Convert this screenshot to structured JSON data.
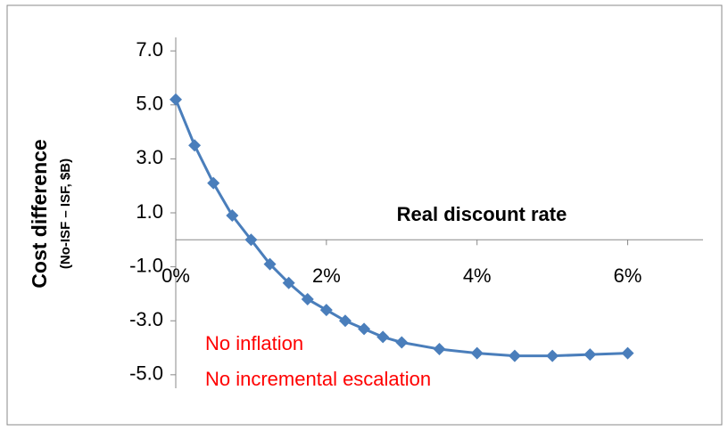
{
  "chart_data": {
    "type": "line",
    "y_label": "Cost difference",
    "y_sublabel": "(No-ISF – ISF, $B)",
    "x_label": "Real discount rate",
    "annotations": [
      "No inflation",
      "No incremental escalation"
    ],
    "x": [
      0,
      0.25,
      0.5,
      0.75,
      1.0,
      1.25,
      1.5,
      1.75,
      2.0,
      2.25,
      2.5,
      2.75,
      3.0,
      3.5,
      4.0,
      4.5,
      5.0,
      5.5,
      6.0
    ],
    "series": [
      {
        "color": "#4a7ebb",
        "values": [
          5.2,
          3.5,
          2.1,
          0.9,
          0.0,
          -0.9,
          -1.6,
          -2.2,
          -2.6,
          -3.0,
          -3.3,
          -3.6,
          -3.8,
          -4.05,
          -4.2,
          -4.3,
          -4.3,
          -4.25,
          -4.2
        ]
      }
    ],
    "xlim": [
      0,
      7
    ],
    "xticks": [
      {
        "value": 0,
        "label": "0%"
      },
      {
        "value": 2,
        "label": "2%"
      },
      {
        "value": 4,
        "label": "4%"
      },
      {
        "value": 6,
        "label": "6%"
      }
    ],
    "ylim": [
      -5.5,
      7.5
    ],
    "yticks": [
      {
        "value": -5,
        "label": "-5.0"
      },
      {
        "value": -3,
        "label": "-3.0"
      },
      {
        "value": -1,
        "label": "-1.0"
      },
      {
        "value": 1,
        "label": "1.0"
      },
      {
        "value": 3,
        "label": "3.0"
      },
      {
        "value": 5,
        "label": "5.0"
      },
      {
        "value": 7,
        "label": "7.0"
      }
    ],
    "grid": false
  }
}
